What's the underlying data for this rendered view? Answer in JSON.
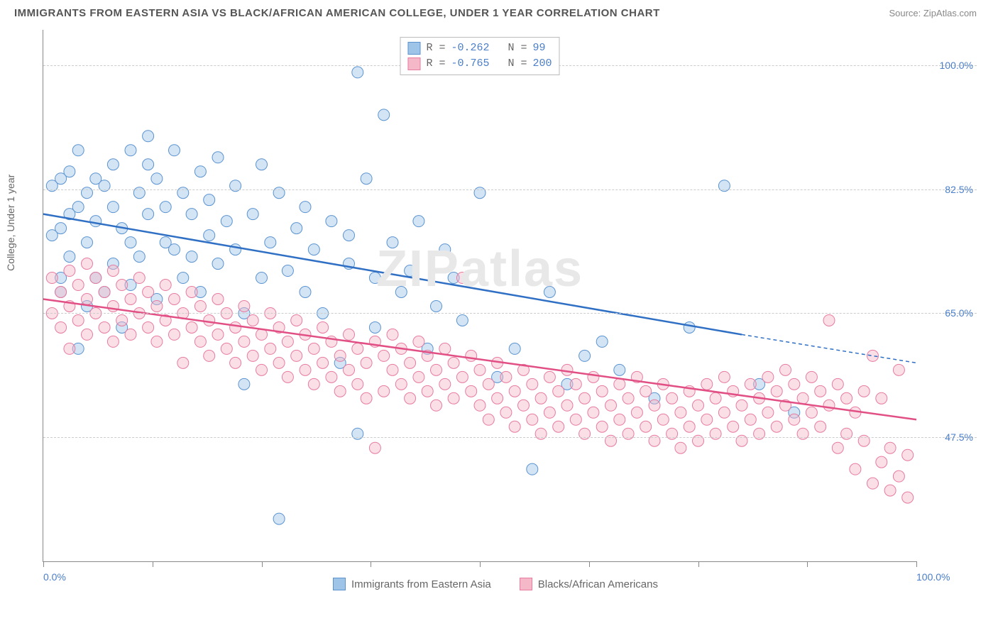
{
  "header": {
    "title": "IMMIGRANTS FROM EASTERN ASIA VS BLACK/AFRICAN AMERICAN COLLEGE, UNDER 1 YEAR CORRELATION CHART",
    "source": "Source: ZipAtlas.com"
  },
  "watermark": "ZIPatlas",
  "chart": {
    "type": "scatter",
    "ylabel": "College, Under 1 year",
    "xlim": [
      0,
      100
    ],
    "ylim": [
      30,
      105
    ],
    "yticks": [
      47.5,
      65.0,
      82.5,
      100.0
    ],
    "ytick_labels": [
      "47.5%",
      "65.0%",
      "82.5%",
      "100.0%"
    ],
    "xtick_positions": [
      0,
      12.5,
      25,
      37.5,
      50,
      62.5,
      75,
      87.5,
      100
    ],
    "xlim_labels": {
      "left": "0.0%",
      "right": "100.0%"
    },
    "background_color": "#ffffff",
    "grid_color": "#cccccc",
    "axis_color": "#888888",
    "marker_radius": 8,
    "marker_opacity": 0.45,
    "series": [
      {
        "name": "Immigrants from Eastern Asia",
        "color_fill": "#9ec5e8",
        "color_stroke": "#5b93d0",
        "line_color": "#2f6fc4",
        "R": "-0.262",
        "N": "99",
        "trend": {
          "x1": 0,
          "y1": 79,
          "x2_solid": 80,
          "y2_solid": 62,
          "x2": 100,
          "y2": 58
        },
        "points": [
          [
            1,
            76
          ],
          [
            1,
            83
          ],
          [
            2,
            77
          ],
          [
            2,
            68
          ],
          [
            2,
            84
          ],
          [
            2,
            70
          ],
          [
            3,
            79
          ],
          [
            3,
            73
          ],
          [
            3,
            85
          ],
          [
            4,
            60
          ],
          [
            4,
            80
          ],
          [
            4,
            88
          ],
          [
            5,
            66
          ],
          [
            5,
            82
          ],
          [
            5,
            75
          ],
          [
            6,
            84
          ],
          [
            6,
            78
          ],
          [
            6,
            70
          ],
          [
            7,
            83
          ],
          [
            7,
            68
          ],
          [
            8,
            72
          ],
          [
            8,
            86
          ],
          [
            8,
            80
          ],
          [
            9,
            77
          ],
          [
            9,
            63
          ],
          [
            10,
            88
          ],
          [
            10,
            75
          ],
          [
            10,
            69
          ],
          [
            11,
            82
          ],
          [
            11,
            73
          ],
          [
            12,
            86
          ],
          [
            12,
            90
          ],
          [
            12,
            79
          ],
          [
            13,
            67
          ],
          [
            13,
            84
          ],
          [
            14,
            75
          ],
          [
            14,
            80
          ],
          [
            15,
            74
          ],
          [
            15,
            88
          ],
          [
            16,
            70
          ],
          [
            16,
            82
          ],
          [
            17,
            79
          ],
          [
            17,
            73
          ],
          [
            18,
            85
          ],
          [
            18,
            68
          ],
          [
            19,
            76
          ],
          [
            19,
            81
          ],
          [
            20,
            87
          ],
          [
            20,
            72
          ],
          [
            21,
            78
          ],
          [
            22,
            74
          ],
          [
            22,
            83
          ],
          [
            23,
            65
          ],
          [
            23,
            55
          ],
          [
            24,
            79
          ],
          [
            25,
            70
          ],
          [
            25,
            86
          ],
          [
            26,
            75
          ],
          [
            27,
            82
          ],
          [
            27,
            36
          ],
          [
            28,
            71
          ],
          [
            29,
            77
          ],
          [
            30,
            68
          ],
          [
            30,
            80
          ],
          [
            31,
            74
          ],
          [
            32,
            65
          ],
          [
            33,
            78
          ],
          [
            34,
            58
          ],
          [
            35,
            72
          ],
          [
            35,
            76
          ],
          [
            36,
            48
          ],
          [
            36,
            99
          ],
          [
            37,
            84
          ],
          [
            38,
            70
          ],
          [
            38,
            63
          ],
          [
            39,
            93
          ],
          [
            40,
            75
          ],
          [
            41,
            68
          ],
          [
            42,
            71
          ],
          [
            43,
            78
          ],
          [
            44,
            60
          ],
          [
            45,
            66
          ],
          [
            46,
            74
          ],
          [
            47,
            70
          ],
          [
            48,
            64
          ],
          [
            50,
            82
          ],
          [
            52,
            56
          ],
          [
            54,
            60
          ],
          [
            56,
            43
          ],
          [
            58,
            68
          ],
          [
            60,
            55
          ],
          [
            62,
            59
          ],
          [
            64,
            61
          ],
          [
            66,
            57
          ],
          [
            70,
            53
          ],
          [
            74,
            63
          ],
          [
            78,
            83
          ],
          [
            82,
            55
          ],
          [
            86,
            51
          ]
        ]
      },
      {
        "name": "Blacks/African Americans",
        "color_fill": "#f5b8c9",
        "color_stroke": "#e77ba0",
        "line_color": "#e14f84",
        "R": "-0.765",
        "N": "200",
        "trend": {
          "x1": 0,
          "y1": 67,
          "x2_solid": 100,
          "y2_solid": 50,
          "x2": 100,
          "y2": 50
        },
        "points": [
          [
            1,
            65
          ],
          [
            1,
            70
          ],
          [
            2,
            68
          ],
          [
            2,
            63
          ],
          [
            3,
            71
          ],
          [
            3,
            66
          ],
          [
            3,
            60
          ],
          [
            4,
            69
          ],
          [
            4,
            64
          ],
          [
            5,
            67
          ],
          [
            5,
            62
          ],
          [
            5,
            72
          ],
          [
            6,
            65
          ],
          [
            6,
            70
          ],
          [
            7,
            63
          ],
          [
            7,
            68
          ],
          [
            8,
            66
          ],
          [
            8,
            61
          ],
          [
            8,
            71
          ],
          [
            9,
            64
          ],
          [
            9,
            69
          ],
          [
            10,
            67
          ],
          [
            10,
            62
          ],
          [
            11,
            65
          ],
          [
            11,
            70
          ],
          [
            12,
            63
          ],
          [
            12,
            68
          ],
          [
            13,
            66
          ],
          [
            13,
            61
          ],
          [
            14,
            64
          ],
          [
            14,
            69
          ],
          [
            15,
            67
          ],
          [
            15,
            62
          ],
          [
            16,
            65
          ],
          [
            16,
            58
          ],
          [
            17,
            63
          ],
          [
            17,
            68
          ],
          [
            18,
            66
          ],
          [
            18,
            61
          ],
          [
            19,
            64
          ],
          [
            19,
            59
          ],
          [
            20,
            62
          ],
          [
            20,
            67
          ],
          [
            21,
            65
          ],
          [
            21,
            60
          ],
          [
            22,
            63
          ],
          [
            22,
            58
          ],
          [
            23,
            61
          ],
          [
            23,
            66
          ],
          [
            24,
            64
          ],
          [
            24,
            59
          ],
          [
            25,
            62
          ],
          [
            25,
            57
          ],
          [
            26,
            60
          ],
          [
            26,
            65
          ],
          [
            27,
            63
          ],
          [
            27,
            58
          ],
          [
            28,
            61
          ],
          [
            28,
            56
          ],
          [
            29,
            59
          ],
          [
            29,
            64
          ],
          [
            30,
            62
          ],
          [
            30,
            57
          ],
          [
            31,
            60
          ],
          [
            31,
            55
          ],
          [
            32,
            58
          ],
          [
            32,
            63
          ],
          [
            33,
            61
          ],
          [
            33,
            56
          ],
          [
            34,
            59
          ],
          [
            34,
            54
          ],
          [
            35,
            57
          ],
          [
            35,
            62
          ],
          [
            36,
            60
          ],
          [
            36,
            55
          ],
          [
            37,
            58
          ],
          [
            37,
            53
          ],
          [
            38,
            46
          ],
          [
            38,
            61
          ],
          [
            39,
            59
          ],
          [
            39,
            54
          ],
          [
            40,
            57
          ],
          [
            40,
            62
          ],
          [
            41,
            60
          ],
          [
            41,
            55
          ],
          [
            42,
            58
          ],
          [
            42,
            53
          ],
          [
            43,
            56
          ],
          [
            43,
            61
          ],
          [
            44,
            59
          ],
          [
            44,
            54
          ],
          [
            45,
            57
          ],
          [
            45,
            52
          ],
          [
            46,
            55
          ],
          [
            46,
            60
          ],
          [
            47,
            58
          ],
          [
            47,
            53
          ],
          [
            48,
            56
          ],
          [
            48,
            70
          ],
          [
            49,
            54
          ],
          [
            49,
            59
          ],
          [
            50,
            57
          ],
          [
            50,
            52
          ],
          [
            51,
            55
          ],
          [
            51,
            50
          ],
          [
            52,
            53
          ],
          [
            52,
            58
          ],
          [
            53,
            56
          ],
          [
            53,
            51
          ],
          [
            54,
            54
          ],
          [
            54,
            49
          ],
          [
            55,
            52
          ],
          [
            55,
            57
          ],
          [
            56,
            55
          ],
          [
            56,
            50
          ],
          [
            57,
            53
          ],
          [
            57,
            48
          ],
          [
            58,
            51
          ],
          [
            58,
            56
          ],
          [
            59,
            54
          ],
          [
            59,
            49
          ],
          [
            60,
            52
          ],
          [
            60,
            57
          ],
          [
            61,
            55
          ],
          [
            61,
            50
          ],
          [
            62,
            53
          ],
          [
            62,
            48
          ],
          [
            63,
            51
          ],
          [
            63,
            56
          ],
          [
            64,
            54
          ],
          [
            64,
            49
          ],
          [
            65,
            52
          ],
          [
            65,
            47
          ],
          [
            66,
            50
          ],
          [
            66,
            55
          ],
          [
            67,
            53
          ],
          [
            67,
            48
          ],
          [
            68,
            51
          ],
          [
            68,
            56
          ],
          [
            69,
            54
          ],
          [
            69,
            49
          ],
          [
            70,
            52
          ],
          [
            70,
            47
          ],
          [
            71,
            50
          ],
          [
            71,
            55
          ],
          [
            72,
            53
          ],
          [
            72,
            48
          ],
          [
            73,
            51
          ],
          [
            73,
            46
          ],
          [
            74,
            49
          ],
          [
            74,
            54
          ],
          [
            75,
            52
          ],
          [
            75,
            47
          ],
          [
            76,
            50
          ],
          [
            76,
            55
          ],
          [
            77,
            53
          ],
          [
            77,
            48
          ],
          [
            78,
            51
          ],
          [
            78,
            56
          ],
          [
            79,
            54
          ],
          [
            79,
            49
          ],
          [
            80,
            52
          ],
          [
            80,
            47
          ],
          [
            81,
            50
          ],
          [
            81,
            55
          ],
          [
            82,
            53
          ],
          [
            82,
            48
          ],
          [
            83,
            51
          ],
          [
            83,
            56
          ],
          [
            84,
            54
          ],
          [
            84,
            49
          ],
          [
            85,
            52
          ],
          [
            85,
            57
          ],
          [
            86,
            55
          ],
          [
            86,
            50
          ],
          [
            87,
            53
          ],
          [
            87,
            48
          ],
          [
            88,
            51
          ],
          [
            88,
            56
          ],
          [
            89,
            54
          ],
          [
            89,
            49
          ],
          [
            90,
            52
          ],
          [
            90,
            64
          ],
          [
            91,
            55
          ],
          [
            91,
            46
          ],
          [
            92,
            53
          ],
          [
            92,
            48
          ],
          [
            93,
            51
          ],
          [
            93,
            43
          ],
          [
            94,
            54
          ],
          [
            94,
            47
          ],
          [
            95,
            41
          ],
          [
            95,
            59
          ],
          [
            96,
            53
          ],
          [
            96,
            44
          ],
          [
            97,
            40
          ],
          [
            97,
            46
          ],
          [
            98,
            42
          ],
          [
            98,
            57
          ],
          [
            99,
            39
          ],
          [
            99,
            45
          ]
        ]
      }
    ]
  },
  "bottom_legend": [
    {
      "label": "Immigrants from Eastern Asia",
      "fill": "#9ec5e8",
      "stroke": "#5b93d0"
    },
    {
      "label": "Blacks/African Americans",
      "fill": "#f5b8c9",
      "stroke": "#e77ba0"
    }
  ]
}
